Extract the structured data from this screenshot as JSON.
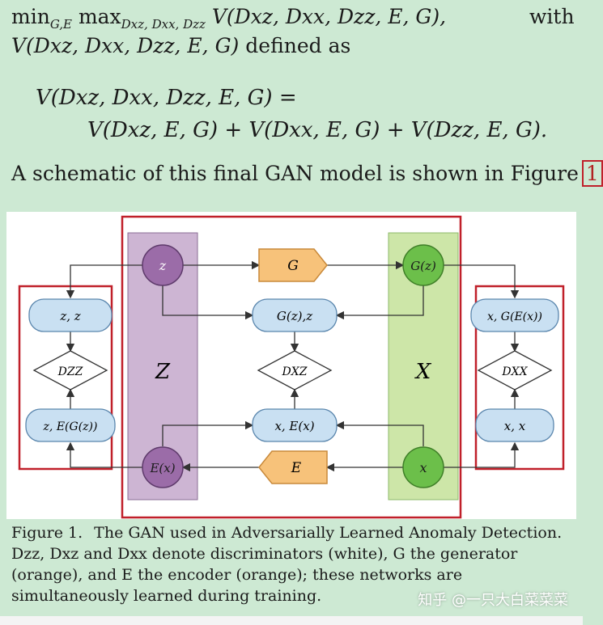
{
  "text": {
    "line1_min": "min",
    "line1_min_sub": "G,E",
    "line1_max": "max",
    "line1_max_sub": "Dxz, Dxx, Dzz",
    "line1_expr": "V(Dxz, Dxx, Dzz, E, G),",
    "line1_with": "with",
    "line2_expr": "V(Dxz, Dxx, Dzz, E, G)",
    "line2_text": "defined as",
    "eq1": "V(Dxz, Dxx, Dzz, E, G) =",
    "eq2": "V(Dxz, E, G) + V(Dxx, E, G) + V(Dzz, E, G).",
    "schematic_text": "A schematic of this final GAN model is shown in Figure",
    "figure_ref": "1"
  },
  "figure": {
    "nodes": {
      "z": "z",
      "G": "G",
      "Gz": "G(z)",
      "Gz_z": "G(z),z",
      "zz": "z, z",
      "x_GEx": "x, G(E(x))",
      "Dzz": "DZZ",
      "Dxz": "DXZ",
      "Dxx": "DXX",
      "z_EGz": "z, E(G(z))",
      "x_Ex": "x, E(x)",
      "x_x": "x, x",
      "Ex": "E(x)",
      "E": "E",
      "x": "x",
      "Z_space": "Z",
      "X_space": "X"
    },
    "colors": {
      "purple_band": "#cdb5d3",
      "purple_node": "#9b6ca8",
      "green_band": "#cde6a8",
      "green_node": "#6cbf4a",
      "orange_node": "#f7c27a",
      "blue_node": "#c9e0f2",
      "red_highlight": "#c0202a"
    }
  },
  "caption": {
    "lead": "Figure 1.",
    "body": "The GAN used in Adversarially Learned Anomaly Detection. Dzz, Dxz and Dxx denote discriminators (white), G the generator (orange), and E the encoder (orange); these networks are simultaneously learned during training."
  },
  "watermark": "知乎 @一只大白菜菜菜"
}
